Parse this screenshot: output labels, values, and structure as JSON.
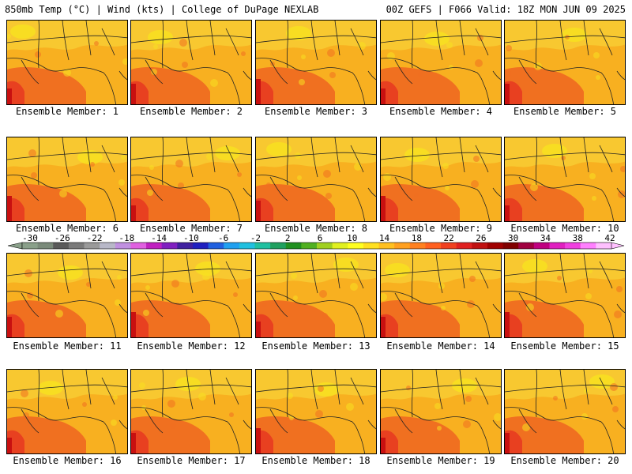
{
  "header": {
    "left": "850mb Temp (°C) | Wind (kts) | College of DuPage NEXLAB",
    "right": "00Z GEFS | F066 Valid: 18Z MON JUN 09 2025"
  },
  "panels": [
    {
      "label": "Ensemble Member: 1"
    },
    {
      "label": "Ensemble Member: 2"
    },
    {
      "label": "Ensemble Member: 3"
    },
    {
      "label": "Ensemble Member: 4"
    },
    {
      "label": "Ensemble Member: 5"
    },
    {
      "label": "Ensemble Member: 6"
    },
    {
      "label": "Ensemble Member: 7"
    },
    {
      "label": "Ensemble Member: 8"
    },
    {
      "label": "Ensemble Member: 9"
    },
    {
      "label": "Ensemble Member: 10"
    },
    {
      "label": "Ensemble Member: 11"
    },
    {
      "label": "Ensemble Member: 12"
    },
    {
      "label": "Ensemble Member: 13"
    },
    {
      "label": "Ensemble Member: 14"
    },
    {
      "label": "Ensemble Member: 15"
    },
    {
      "label": "Ensemble Member: 16"
    },
    {
      "label": "Ensemble Member: 17"
    },
    {
      "label": "Ensemble Member: 18"
    },
    {
      "label": "Ensemble Member: 19"
    },
    {
      "label": "Ensemble Member: 20"
    }
  ],
  "colorbar": {
    "ticks": [
      "-30",
      "-26",
      "-22",
      "-18",
      "-14",
      "-10",
      "-6",
      "-2",
      "2",
      "6",
      "10",
      "14",
      "18",
      "22",
      "26",
      "30",
      "34",
      "38",
      "42"
    ],
    "colors": [
      "#8aa08a",
      "#7a8a7a",
      "#5a5a5a",
      "#7a7a7a",
      "#9a9a9a",
      "#b8b8c8",
      "#c090e0",
      "#e060e0",
      "#c020c0",
      "#8020c0",
      "#4020a0",
      "#2020c0",
      "#2060e0",
      "#20a0f0",
      "#20c0e0",
      "#20c0a0",
      "#20a060",
      "#209020",
      "#50b020",
      "#a0d020",
      "#e0f020",
      "#ffff20",
      "#ffe020",
      "#ffc020",
      "#ffa020",
      "#ff8020",
      "#ff6020",
      "#f04020",
      "#e02020",
      "#c01010",
      "#a00000",
      "#800000",
      "#a00040",
      "#c00080",
      "#e020c0",
      "#f040e0",
      "#ff80ff",
      "#ffc0ff"
    ],
    "map_colors": {
      "cool": "#f8e020",
      "warm": "#f8b020",
      "hot": "#f07020",
      "hotter": "#e84020",
      "max": "#c81010"
    }
  }
}
